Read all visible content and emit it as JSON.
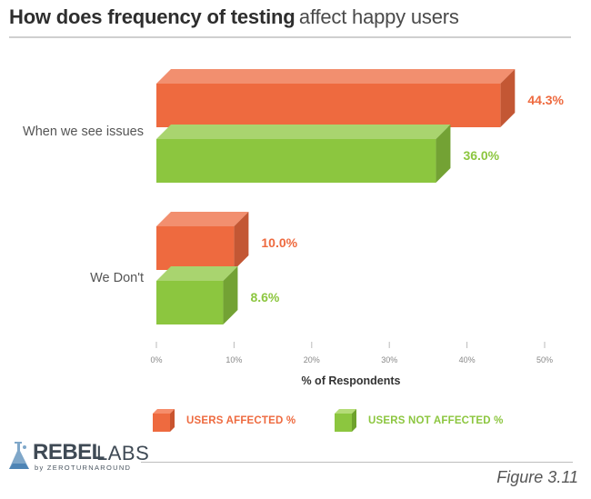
{
  "title": {
    "bold": "How does frequency of testing",
    "normal": "affect happy users"
  },
  "chart_data": {
    "type": "bar",
    "orientation": "horizontal",
    "categories": [
      "When we see issues",
      "We Don't"
    ],
    "series": [
      {
        "name": "USERS AFFECTED %",
        "values": [
          44.3,
          10.0
        ],
        "color": "#ee6a3f"
      },
      {
        "name": "USERS NOT AFFECTED %",
        "values": [
          36.0,
          8.6
        ],
        "color": "#8cc63f"
      }
    ],
    "value_labels": [
      [
        "44.3%",
        "10.0%"
      ],
      [
        "36.0%",
        "8.6%"
      ]
    ],
    "xlabel": "% of Respondents",
    "xlim": [
      0,
      50
    ],
    "xticks": [
      0,
      10,
      20,
      30,
      40,
      50
    ],
    "xtick_labels": [
      "0%",
      "10%",
      "20%",
      "30%",
      "40%",
      "50%"
    ],
    "legend_position": "bottom",
    "grid": false
  },
  "legend": [
    {
      "label": "USERS AFFECTED %",
      "color": "#ee6a3f"
    },
    {
      "label": "USERS NOT AFFECTED %",
      "color": "#8cc63f"
    }
  ],
  "logo": {
    "rebel": "REBEL",
    "labs": "LABS",
    "sub": "by ZEROTURNAROUND"
  },
  "figure_caption": "Figure 3.11"
}
